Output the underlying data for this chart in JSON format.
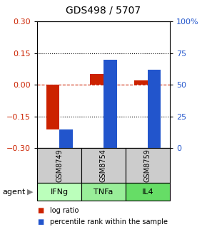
{
  "title": "GDS498 / 5707",
  "samples": [
    "GSM8749",
    "GSM8754",
    "GSM8759"
  ],
  "agents": [
    "IFNg",
    "TNFa",
    "IL4"
  ],
  "log_ratios": [
    -0.21,
    0.05,
    0.02
  ],
  "percentile_ranks": [
    15,
    70,
    62
  ],
  "left_ylim": [
    -0.3,
    0.3
  ],
  "right_ylim": [
    0,
    100
  ],
  "left_yticks": [
    -0.3,
    -0.15,
    0,
    0.15,
    0.3
  ],
  "right_yticks": [
    0,
    25,
    50,
    75,
    100
  ],
  "right_yticklabels": [
    "0",
    "25",
    "50",
    "75",
    "100%"
  ],
  "hlines_dotted": [
    -0.15,
    0.15
  ],
  "hline_dashed": 0,
  "bar_width": 0.3,
  "bar_color_red": "#cc2200",
  "bar_color_blue": "#2255cc",
  "agent_colors": [
    "#bbffbb",
    "#99ee99",
    "#66dd66"
  ],
  "sample_box_color": "#cccccc",
  "legend_red": "log ratio",
  "legend_blue": "percentile rank within the sample",
  "agent_label": "agent"
}
